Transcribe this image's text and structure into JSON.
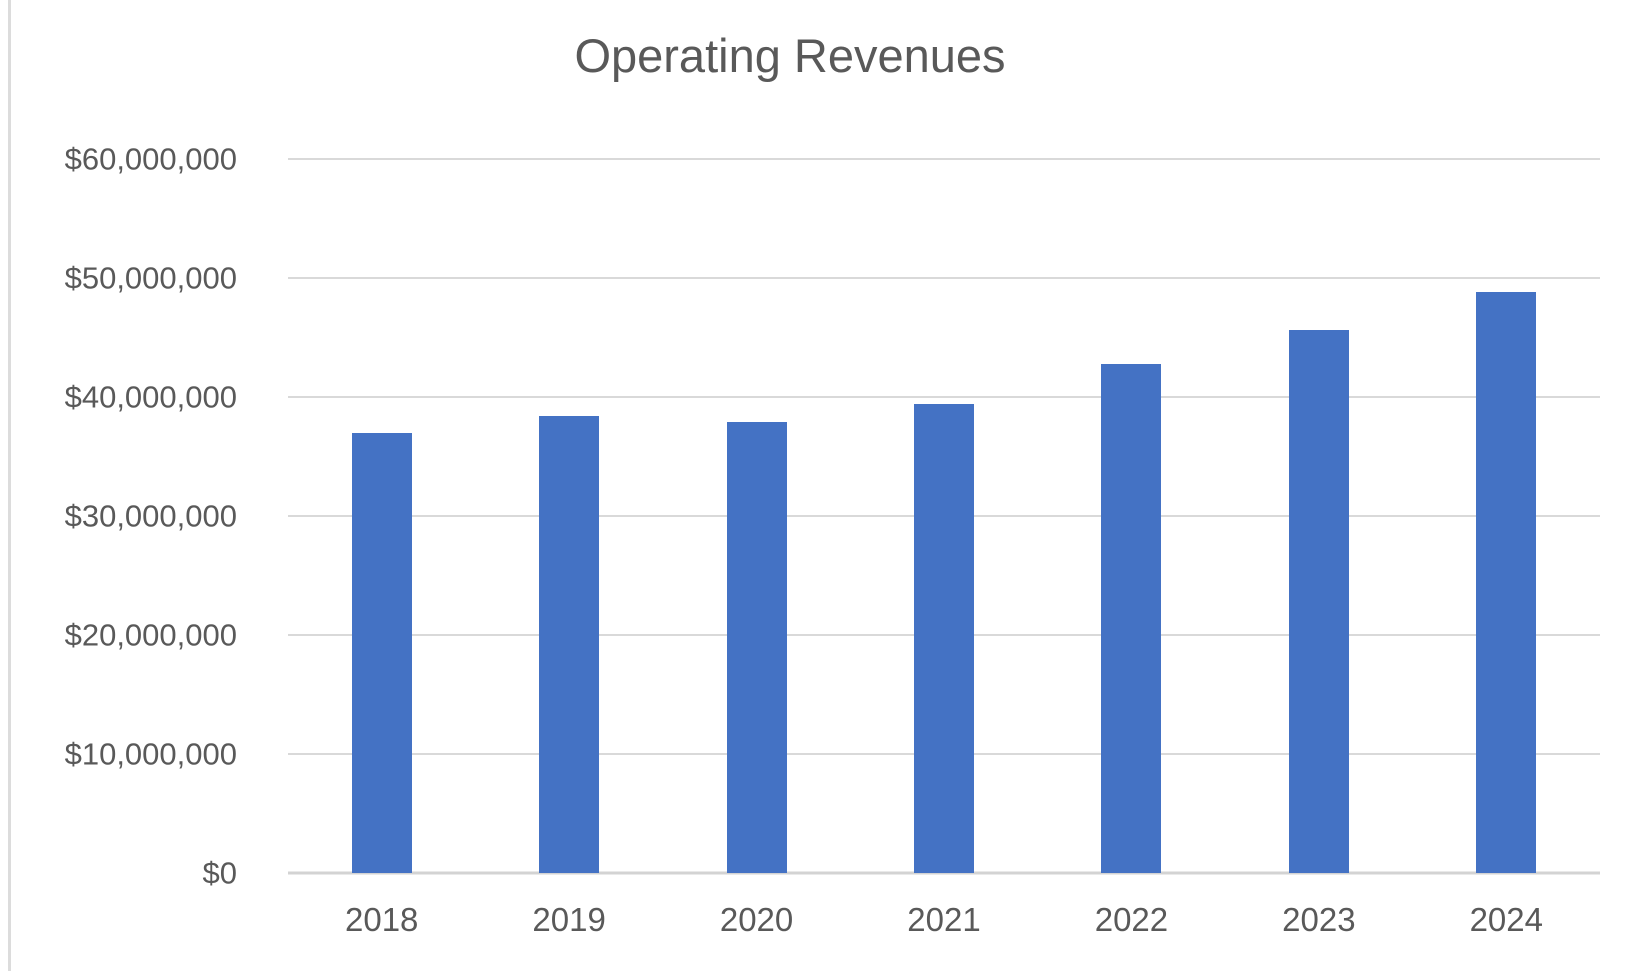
{
  "page": {
    "background_color": "#ffffff",
    "border_color": "#dcdcdc"
  },
  "colors": {
    "bar": "#4472c4",
    "gridline": "#d9d9d9",
    "axis_line": "#d3d3d3",
    "text": "#595959"
  },
  "chart_data": {
    "type": "bar",
    "title": "Operating Revenues",
    "xlabel": "",
    "ylabel": "",
    "categories": [
      "2018",
      "2019",
      "2020",
      "2021",
      "2022",
      "2023",
      "2024"
    ],
    "values": [
      37000000,
      38400000,
      37900000,
      39400000,
      42800000,
      45600000,
      48800000
    ],
    "bar_color": "#4472c4",
    "ylim": [
      0,
      60000000
    ],
    "ytick_interval": 10000000,
    "yticks": [
      {
        "value": 0,
        "label": "$0"
      },
      {
        "value": 10000000,
        "label": "$10,000,000"
      },
      {
        "value": 20000000,
        "label": "$20,000,000"
      },
      {
        "value": 30000000,
        "label": "$30,000,000"
      },
      {
        "value": 40000000,
        "label": "$40,000,000"
      },
      {
        "value": 50000000,
        "label": "$50,000,000"
      },
      {
        "value": 60000000,
        "label": "$60,000,000"
      }
    ],
    "grid": true,
    "legend": false
  }
}
